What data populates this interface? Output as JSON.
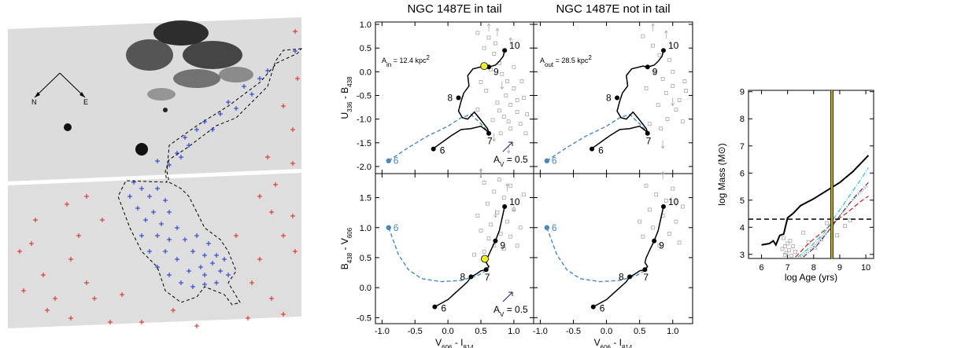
{
  "image_panel": {
    "compass_n": "N",
    "compass_e": "E"
  },
  "colors": {
    "outside_marker": "#e02020",
    "inside_marker": "#2030d0",
    "dust_track": "#4a88c0",
    "highlight": "#f0f020",
    "vline": "#c8b400"
  },
  "chart_data": [
    {
      "id": "ub_tail",
      "type": "line",
      "title": "NGC 1487E in tail",
      "ylabel": "U336 - B438",
      "xlim": [
        -1.1,
        1.3
      ],
      "ylim": [
        -2.15,
        1.05
      ],
      "annotation": "Ain = 12.4 kpc2",
      "av_label": "AV = 0.5",
      "track": [
        [
          0.86,
          0.45
        ],
        [
          0.84,
          0.33
        ],
        [
          0.78,
          0.22
        ],
        [
          0.72,
          0.14
        ],
        [
          0.62,
          0.1
        ],
        [
          0.55,
          0.12
        ],
        [
          0.38,
          0.06
        ],
        [
          0.3,
          -0.08
        ],
        [
          0.32,
          -0.3
        ],
        [
          0.24,
          -0.45
        ],
        [
          0.2,
          -0.62
        ],
        [
          0.16,
          -0.83
        ],
        [
          0.22,
          -0.97
        ],
        [
          0.3,
          -1.0
        ],
        [
          0.4,
          -0.85
        ],
        [
          0.5,
          -1.02
        ],
        [
          0.6,
          -1.2
        ],
        [
          0.62,
          -1.28
        ],
        [
          0.5,
          -1.15
        ],
        [
          0.35,
          -1.2
        ],
        [
          0.2,
          -1.22
        ],
        [
          0.05,
          -1.35
        ],
        [
          -0.05,
          -1.45
        ],
        [
          -0.15,
          -1.55
        ],
        [
          -0.22,
          -1.62
        ]
      ],
      "dust": [
        [
          -0.9,
          -1.88
        ],
        [
          -0.6,
          -1.6
        ],
        [
          -0.3,
          -1.35
        ],
        [
          0.0,
          -1.15
        ],
        [
          0.2,
          -0.97
        ],
        [
          0.35,
          -0.9
        ],
        [
          0.5,
          -1.1
        ],
        [
          0.62,
          -1.28
        ]
      ],
      "age_labels": [
        {
          "text": "10",
          "x": 0.86,
          "y": 0.45
        },
        {
          "text": "9",
          "x": 0.62,
          "y": 0.1
        },
        {
          "text": "8",
          "x": 0.16,
          "y": -0.55
        },
        {
          "text": "7",
          "x": 0.62,
          "y": -1.3
        },
        {
          "text": "6",
          "x": -0.22,
          "y": -1.63
        }
      ],
      "dust_label": {
        "text": "6",
        "x": -0.9,
        "y": -1.88
      },
      "highlight_point": [
        0.55,
        0.12
      ],
      "scatter": [
        [
          0.45,
          0.82
        ],
        [
          0.62,
          0.72
        ],
        [
          0.72,
          0.6
        ],
        [
          0.55,
          0.5
        ],
        [
          0.7,
          0.38
        ],
        [
          0.78,
          0.18
        ],
        [
          0.65,
          0.05
        ],
        [
          0.82,
          -0.05
        ],
        [
          0.9,
          -0.2
        ],
        [
          1.0,
          -0.35
        ],
        [
          0.88,
          -0.5
        ],
        [
          0.75,
          -0.65
        ],
        [
          0.95,
          -0.7
        ],
        [
          1.05,
          -0.85
        ],
        [
          0.85,
          -0.95
        ],
        [
          0.68,
          -1.02
        ],
        [
          1.1,
          -1.1
        ],
        [
          0.95,
          -1.2
        ],
        [
          0.8,
          -1.3
        ],
        [
          1.15,
          -0.55
        ],
        [
          1.2,
          -0.9
        ],
        [
          0.58,
          -0.4
        ],
        [
          0.45,
          -0.8
        ],
        [
          1.0,
          0.1
        ],
        [
          1.12,
          -0.2
        ],
        [
          0.92,
          -1.05
        ],
        [
          1.18,
          -1.3
        ],
        [
          0.78,
          -0.82
        ],
        [
          0.5,
          -0.22
        ],
        [
          1.05,
          -0.6
        ]
      ],
      "up_arrows": [
        [
          0.75,
          0.75
        ],
        [
          0.95,
          0.55
        ],
        [
          0.62,
          0.85
        ]
      ],
      "down_arrows": [
        [
          0.82,
          -0.2
        ],
        [
          0.7,
          -1.3
        ],
        [
          0.92,
          -1.55
        ]
      ]
    },
    {
      "id": "ub_notail",
      "type": "line",
      "title": "NGC 1487E not in tail",
      "xlim": [
        -1.1,
        1.3
      ],
      "ylim": [
        -2.15,
        1.05
      ],
      "annotation": "Aout = 28.5 kpc2",
      "track": [
        [
          0.86,
          0.45
        ],
        [
          0.84,
          0.33
        ],
        [
          0.78,
          0.22
        ],
        [
          0.72,
          0.14
        ],
        [
          0.62,
          0.1
        ],
        [
          0.55,
          0.12
        ],
        [
          0.38,
          0.06
        ],
        [
          0.3,
          -0.08
        ],
        [
          0.32,
          -0.3
        ],
        [
          0.24,
          -0.45
        ],
        [
          0.2,
          -0.62
        ],
        [
          0.16,
          -0.83
        ],
        [
          0.22,
          -0.97
        ],
        [
          0.3,
          -1.0
        ],
        [
          0.4,
          -0.85
        ],
        [
          0.5,
          -1.02
        ],
        [
          0.6,
          -1.2
        ],
        [
          0.62,
          -1.28
        ],
        [
          0.5,
          -1.15
        ],
        [
          0.35,
          -1.2
        ],
        [
          0.2,
          -1.22
        ],
        [
          0.05,
          -1.35
        ],
        [
          -0.05,
          -1.45
        ],
        [
          -0.15,
          -1.55
        ],
        [
          -0.22,
          -1.62
        ]
      ],
      "dust": [
        [
          -0.9,
          -1.88
        ],
        [
          -0.6,
          -1.6
        ],
        [
          -0.3,
          -1.35
        ],
        [
          0.0,
          -1.15
        ],
        [
          0.2,
          -0.97
        ],
        [
          0.35,
          -0.9
        ],
        [
          0.5,
          -1.1
        ],
        [
          0.62,
          -1.28
        ]
      ],
      "age_labels": [
        {
          "text": "10",
          "x": 0.86,
          "y": 0.45
        },
        {
          "text": "9",
          "x": 0.62,
          "y": 0.1
        },
        {
          "text": "8",
          "x": 0.16,
          "y": -0.55
        },
        {
          "text": "7",
          "x": 0.62,
          "y": -1.3
        },
        {
          "text": "6",
          "x": -0.22,
          "y": -1.63
        }
      ],
      "dust_label": {
        "text": "6",
        "x": -0.9,
        "y": -1.88
      },
      "scatter": [
        [
          0.55,
          0.75
        ],
        [
          0.7,
          0.55
        ],
        [
          0.8,
          0.35
        ],
        [
          0.95,
          0.25
        ],
        [
          0.72,
          0.0
        ],
        [
          0.85,
          -0.15
        ],
        [
          1.0,
          -0.3
        ],
        [
          0.9,
          -0.45
        ],
        [
          1.1,
          -0.6
        ],
        [
          0.78,
          -0.7
        ],
        [
          1.05,
          -0.8
        ],
        [
          0.92,
          -1.0
        ],
        [
          1.15,
          -1.05
        ],
        [
          0.82,
          -1.2
        ],
        [
          1.2,
          -0.4
        ],
        [
          0.6,
          -0.35
        ],
        [
          0.65,
          -1.1
        ],
        [
          1.0,
          0.0
        ],
        [
          1.18,
          -0.2
        ]
      ],
      "up_arrows": [
        [
          0.9,
          0.7
        ],
        [
          0.7,
          0.85
        ]
      ],
      "down_arrows": [
        [
          1.0,
          -0.55
        ],
        [
          0.85,
          -1.45
        ]
      ]
    },
    {
      "id": "bv_tail",
      "type": "line",
      "ylabel": "B438 - V606",
      "xlabel": "V606 - I814",
      "xlim": [
        -1.1,
        1.3
      ],
      "ylim": [
        -0.6,
        1.9
      ],
      "av_label": "AV = 0.5",
      "track": [
        [
          0.86,
          1.35
        ],
        [
          0.82,
          1.15
        ],
        [
          0.78,
          0.95
        ],
        [
          0.72,
          0.78
        ],
        [
          0.65,
          0.62
        ],
        [
          0.6,
          0.5
        ],
        [
          0.58,
          0.42
        ],
        [
          0.62,
          0.35
        ],
        [
          0.58,
          0.3
        ],
        [
          0.5,
          0.28
        ],
        [
          0.42,
          0.22
        ],
        [
          0.35,
          0.18
        ],
        [
          0.3,
          0.1
        ],
        [
          0.2,
          0.0
        ],
        [
          0.1,
          -0.1
        ],
        [
          0.0,
          -0.2
        ],
        [
          -0.2,
          -0.32
        ]
      ],
      "dust": [
        [
          -0.9,
          1.0
        ],
        [
          -0.75,
          0.55
        ],
        [
          -0.6,
          0.3
        ],
        [
          -0.4,
          0.15
        ],
        [
          -0.1,
          0.1
        ],
        [
          0.2,
          0.12
        ],
        [
          0.45,
          0.2
        ],
        [
          0.6,
          0.3
        ]
      ],
      "age_labels": [
        {
          "text": "10",
          "x": 0.86,
          "y": 1.35
        },
        {
          "text": "9",
          "x": 0.72,
          "y": 0.78
        },
        {
          "text": "8",
          "x": 0.35,
          "y": 0.18
        },
        {
          "text": "7",
          "x": 0.58,
          "y": 0.3
        },
        {
          "text": "6",
          "x": -0.2,
          "y": -0.32
        }
      ],
      "dust_label": {
        "text": "6",
        "x": -0.9,
        "y": 1.0
      },
      "highlight_point": [
        0.56,
        0.48
      ],
      "scatter": [
        [
          0.55,
          1.75
        ],
        [
          0.7,
          1.6
        ],
        [
          0.85,
          1.5
        ],
        [
          0.95,
          1.7
        ],
        [
          0.6,
          1.4
        ],
        [
          0.75,
          1.25
        ],
        [
          0.9,
          1.1
        ],
        [
          1.0,
          1.3
        ],
        [
          0.65,
          1.05
        ],
        [
          0.8,
          0.9
        ],
        [
          0.95,
          0.85
        ],
        [
          0.5,
          0.95
        ],
        [
          0.7,
          0.7
        ],
        [
          0.55,
          0.6
        ],
        [
          1.1,
          1.0
        ],
        [
          1.15,
          1.55
        ],
        [
          0.45,
          1.2
        ],
        [
          0.62,
          0.82
        ],
        [
          0.85,
          0.65
        ],
        [
          1.05,
          0.7
        ],
        [
          0.4,
          0.55
        ],
        [
          0.78,
          1.8
        ]
      ],
      "up_arrows": [
        [
          0.5,
          1.85
        ],
        [
          0.9,
          1.6
        ]
      ],
      "down_arrows": [
        [
          1.0,
          1.4
        ],
        [
          0.72,
          1.3
        ]
      ]
    },
    {
      "id": "bv_notail",
      "type": "line",
      "xlabel": "V606 - I814",
      "xlim": [
        -1.1,
        1.3
      ],
      "ylim": [
        -0.6,
        1.9
      ],
      "track": [
        [
          0.86,
          1.35
        ],
        [
          0.82,
          1.15
        ],
        [
          0.78,
          0.95
        ],
        [
          0.72,
          0.78
        ],
        [
          0.65,
          0.62
        ],
        [
          0.6,
          0.5
        ],
        [
          0.58,
          0.42
        ],
        [
          0.62,
          0.35
        ],
        [
          0.58,
          0.3
        ],
        [
          0.5,
          0.28
        ],
        [
          0.42,
          0.22
        ],
        [
          0.35,
          0.18
        ],
        [
          0.3,
          0.1
        ],
        [
          0.2,
          0.0
        ],
        [
          0.1,
          -0.1
        ],
        [
          0.0,
          -0.2
        ],
        [
          -0.2,
          -0.32
        ]
      ],
      "dust": [
        [
          -0.9,
          1.0
        ],
        [
          -0.75,
          0.55
        ],
        [
          -0.6,
          0.3
        ],
        [
          -0.4,
          0.15
        ],
        [
          -0.1,
          0.1
        ],
        [
          0.2,
          0.12
        ],
        [
          0.45,
          0.2
        ],
        [
          0.6,
          0.3
        ]
      ],
      "age_labels": [
        {
          "text": "10",
          "x": 0.86,
          "y": 1.35
        },
        {
          "text": "9",
          "x": 0.72,
          "y": 0.78
        },
        {
          "text": "8",
          "x": 0.35,
          "y": 0.18
        },
        {
          "text": "7",
          "x": 0.58,
          "y": 0.3
        },
        {
          "text": "6",
          "x": -0.2,
          "y": -0.32
        }
      ],
      "dust_label": {
        "text": "6",
        "x": -0.9,
        "y": 1.0
      },
      "scatter": [
        [
          0.6,
          1.7
        ],
        [
          0.75,
          1.55
        ],
        [
          0.9,
          1.45
        ],
        [
          1.0,
          1.65
        ],
        [
          0.65,
          1.3
        ],
        [
          0.85,
          1.2
        ],
        [
          1.05,
          1.1
        ],
        [
          0.7,
          1.0
        ],
        [
          0.95,
          0.9
        ],
        [
          1.15,
          1.35
        ],
        [
          0.55,
          0.85
        ],
        [
          0.8,
          0.7
        ],
        [
          1.1,
          0.75
        ],
        [
          0.5,
          1.1
        ]
      ],
      "up_arrows": [
        [
          0.85,
          1.8
        ]
      ],
      "down_arrows": [
        [
          1.05,
          1.5
        ]
      ]
    },
    {
      "id": "mass_age",
      "type": "line",
      "xlabel": "log Age (yrs)",
      "ylabel": "log Mass (M⊙)",
      "xlim": [
        5.5,
        10.3
      ],
      "ylim": [
        2.85,
        9.05
      ],
      "vline_x": 8.7,
      "hline_y": 4.3,
      "series": [
        {
          "style": "solid",
          "color": "#000000",
          "values": [
            [
              6.0,
              3.35
            ],
            [
              6.3,
              3.4
            ],
            [
              6.45,
              3.5
            ],
            [
              6.55,
              3.35
            ],
            [
              6.7,
              3.7
            ],
            [
              6.85,
              3.75
            ],
            [
              7.0,
              4.35
            ],
            [
              7.2,
              4.5
            ],
            [
              7.5,
              4.8
            ],
            [
              8.0,
              5.05
            ],
            [
              8.5,
              5.35
            ],
            [
              9.0,
              5.65
            ],
            [
              9.5,
              6.05
            ],
            [
              10.1,
              6.65
            ]
          ]
        },
        {
          "style": "dashed",
          "color": "#d02020",
          "values": [
            [
              7.3,
              2.9
            ],
            [
              7.8,
              3.4
            ],
            [
              8.3,
              3.8
            ],
            [
              8.8,
              4.2
            ],
            [
              9.3,
              4.55
            ],
            [
              9.8,
              4.95
            ],
            [
              10.1,
              5.15
            ]
          ]
        },
        {
          "style": "dashdot",
          "color": "#20c8d8",
          "values": [
            [
              7.4,
              2.9
            ],
            [
              7.9,
              3.3
            ],
            [
              8.4,
              3.8
            ],
            [
              8.9,
              4.5
            ],
            [
              9.4,
              5.2
            ],
            [
              9.8,
              5.75
            ],
            [
              10.1,
              6.2
            ]
          ]
        },
        {
          "style": "dashdot",
          "color": "#6a2080",
          "values": [
            [
              7.6,
              2.9
            ],
            [
              8.1,
              3.3
            ],
            [
              8.6,
              3.9
            ],
            [
              9.1,
              4.55
            ],
            [
              9.6,
              5.15
            ],
            [
              10.1,
              5.65
            ]
          ]
        },
        {
          "style": "dotted",
          "color": "#30a030",
          "values": [
            [
              7.5,
              2.9
            ],
            [
              8.0,
              3.3
            ],
            [
              8.5,
              3.8
            ],
            [
              9.0,
              4.4
            ],
            [
              9.5,
              5.0
            ],
            [
              10.1,
              5.55
            ]
          ]
        }
      ],
      "scatter": [
        [
          6.8,
          3.2
        ],
        [
          6.9,
          3.3
        ],
        [
          6.95,
          3.05
        ],
        [
          7.0,
          3.4
        ],
        [
          7.05,
          3.15
        ],
        [
          7.1,
          3.5
        ],
        [
          7.15,
          2.95
        ],
        [
          6.85,
          3.6
        ],
        [
          7.2,
          3.3
        ],
        [
          6.9,
          2.98
        ],
        [
          7.3,
          3.1
        ],
        [
          7.6,
          3.8
        ],
        [
          8.3,
          3.55
        ],
        [
          8.5,
          4.15
        ],
        [
          8.9,
          3.7
        ],
        [
          9.2,
          4.05
        ],
        [
          9.4,
          4.25
        ],
        [
          8.7,
          4.3
        ],
        [
          8.05,
          3.25
        ],
        [
          7.8,
          3.45
        ]
      ]
    }
  ]
}
